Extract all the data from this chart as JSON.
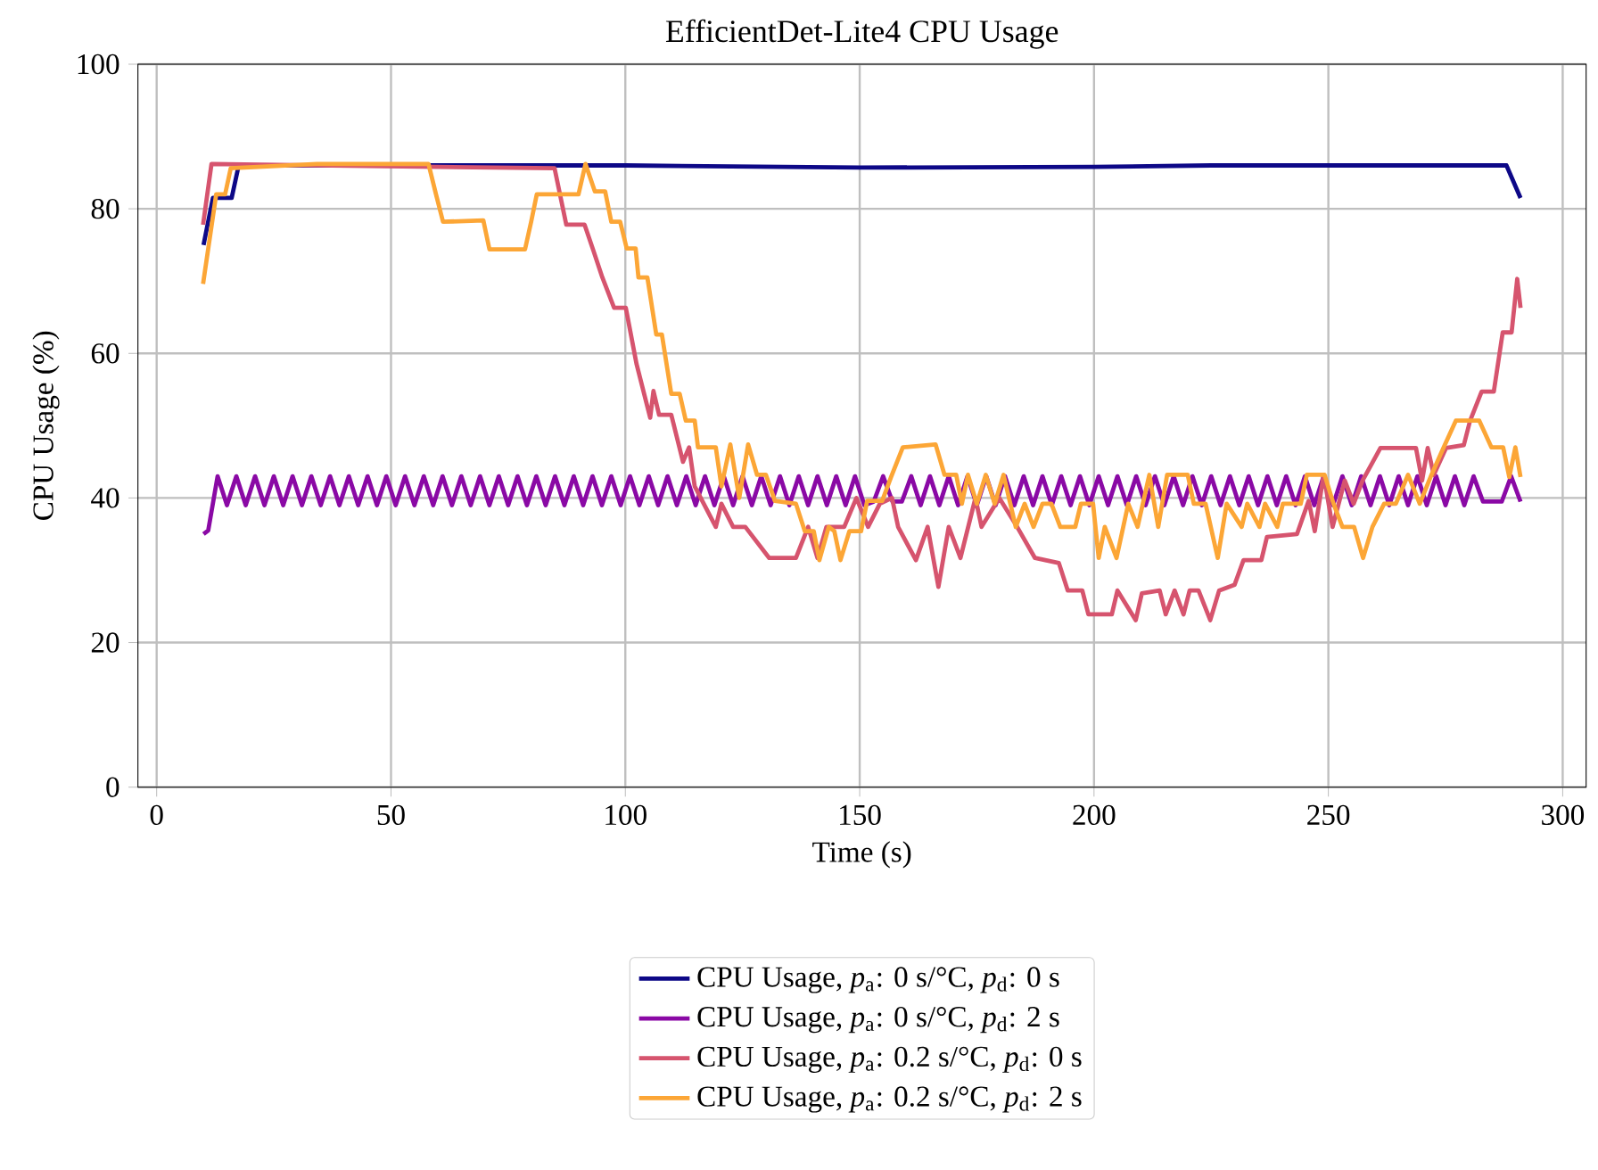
{
  "chart_data": {
    "type": "line",
    "title": "EfficientDet-Lite4 CPU Usage",
    "xlabel": "Time (s)",
    "ylabel": "CPU Usage (%)",
    "xlim": [
      -4,
      305
    ],
    "ylim": [
      0,
      100
    ],
    "xticks": [
      0,
      50,
      100,
      150,
      200,
      250,
      300
    ],
    "yticks": [
      0,
      20,
      40,
      60,
      80,
      100
    ],
    "grid": true,
    "legend": "bottom",
    "series": [
      {
        "name": "CPU Usage, *p*$_{a}$: 0 s/°C, *p*$_{d}$: 0 s",
        "color": "#0d0887",
        "x": [
          10,
          12,
          16,
          17.5,
          100,
          150,
          200,
          225,
          250,
          288,
          291
        ],
        "values": [
          75,
          81.5,
          81.5,
          86,
          86,
          85.7,
          85.8,
          86,
          86,
          86,
          81.5
        ]
      },
      {
        "name": "CPU Usage, *p*$_{a}$: 0 s/°C, *p*$_{d}$: 2 s",
        "color": "#8a09a5",
        "x": [
          10,
          11,
          13,
          15,
          17,
          19,
          21,
          23,
          25,
          27,
          29,
          31,
          33,
          35,
          37,
          39,
          41,
          43,
          45,
          47,
          49,
          51,
          53,
          55,
          57,
          59,
          61,
          63,
          65,
          67,
          69,
          71,
          73,
          75,
          77,
          79,
          81,
          83,
          85,
          87,
          89,
          91,
          93,
          95,
          97,
          99,
          101,
          103,
          105,
          107,
          109,
          111,
          113,
          115,
          117,
          119,
          121,
          123,
          125,
          127,
          129,
          131,
          133,
          135,
          137,
          139,
          141,
          143,
          145,
          147,
          149,
          151,
          153,
          155,
          157,
          159,
          161,
          163,
          165,
          167,
          169,
          171,
          173,
          175,
          177,
          179,
          181,
          183,
          185,
          187,
          189,
          191,
          193,
          195,
          197,
          199,
          201,
          203,
          205,
          207,
          209,
          211,
          213,
          215,
          217,
          219,
          221,
          223,
          225,
          227,
          229,
          231,
          233,
          235,
          237,
          239,
          241,
          243,
          245,
          247,
          249,
          251,
          253,
          255,
          257,
          259,
          261,
          263,
          265,
          267,
          269,
          271,
          273,
          275,
          277,
          279,
          281,
          283,
          285,
          287,
          289,
          291
        ],
        "values": [
          35,
          35.5,
          43,
          39,
          43,
          39,
          43,
          39,
          43,
          39,
          43,
          39,
          43,
          39,
          43,
          39,
          43,
          39,
          43,
          39,
          43,
          39,
          43,
          39,
          43,
          39,
          43,
          39,
          43,
          39,
          43,
          39,
          43,
          39,
          43,
          39,
          43,
          39,
          43,
          39,
          43,
          39,
          43,
          39,
          43,
          39,
          43,
          39,
          43,
          39,
          43,
          39,
          43,
          39,
          43,
          39,
          43,
          39,
          43,
          39,
          43,
          39,
          43,
          39,
          43,
          39,
          43,
          39,
          43,
          39,
          43,
          39,
          39.5,
          43,
          39.5,
          39.5,
          43,
          39,
          43,
          39,
          43,
          39,
          43,
          39,
          43,
          39,
          43,
          39,
          43,
          39,
          43,
          39,
          43,
          39,
          43,
          39,
          43,
          39,
          43,
          39,
          43,
          39,
          43,
          39,
          43,
          39,
          43,
          39,
          43,
          39,
          43,
          39,
          43,
          39,
          43,
          39,
          43,
          39,
          43,
          39,
          43,
          39,
          43,
          39,
          43,
          39,
          43,
          39,
          43,
          39,
          43,
          39,
          43,
          39,
          43,
          39,
          43,
          39.5,
          39.5,
          39.5,
          43,
          39.5
        ]
      },
      {
        "name": "CPU Usage, *p*$_{a}$: 0.2 s/°C, *p*$_{d}$: 0 s",
        "color": "#d6546e",
        "x": [
          9.9,
          11.7,
          84.9,
          87.4,
          91.3,
          93.2,
          95.1,
          97.6,
          100.1,
          102.4,
          105.3,
          106,
          107.2,
          109.8,
          112.3,
          113.6,
          114.8,
          119.3,
          120.5,
          123,
          125.6,
          130.7,
          136.4,
          139,
          141,
          142.9,
          146.7,
          149.3,
          151.8,
          154.3,
          156.9,
          158.2,
          162,
          164.5,
          166.8,
          169,
          171.5,
          174.7,
          176,
          179.8,
          183.6,
          187.4,
          192.5,
          194.4,
          197.5,
          198.8,
          203.8,
          205,
          208.9,
          210.2,
          214,
          215.3,
          217.2,
          219.1,
          220.4,
          222.3,
          224.8,
          226.7,
          230,
          231.9,
          235.7,
          236.9,
          243.3,
          245.8,
          247.1,
          249,
          250.9,
          253.5,
          255.4,
          257.3,
          261.1,
          268.7,
          270,
          271.2,
          272.5,
          275.1,
          278.9,
          280.2,
          282.7,
          285.3,
          287.2,
          289.1,
          290.3,
          291
        ],
        "values": [
          77.8,
          86.2,
          85.6,
          77.8,
          77.8,
          74.2,
          70.5,
          66.3,
          66.3,
          58.5,
          51.1,
          54.8,
          51.5,
          51.5,
          45,
          47,
          41.6,
          36,
          39.2,
          36,
          36,
          31.7,
          31.7,
          36,
          31.7,
          36,
          36,
          40,
          36,
          39.2,
          40,
          36,
          31.4,
          36,
          27.7,
          36,
          31.7,
          40,
          36,
          40,
          36,
          31.7,
          31,
          27.2,
          27.2,
          23.9,
          23.9,
          27.2,
          23.1,
          26.8,
          27.2,
          23.9,
          27.2,
          23.9,
          27.2,
          27.2,
          23.1,
          27.2,
          28,
          31.4,
          31.4,
          34.6,
          35,
          39.6,
          35.4,
          43.2,
          36,
          42.4,
          39.2,
          42.4,
          46.9,
          46.9,
          42.4,
          46.9,
          43.2,
          46.9,
          47.3,
          50.6,
          54.7,
          54.7,
          62.9,
          62.9,
          70.3,
          66.3
        ]
      },
      {
        "name": "CPU Usage, *p*$_{a}$: 0.2 s/°C, *p*$_{d}$: 2 s",
        "color": "#fca636",
        "x": [
          9.9,
          12.7,
          14.6,
          15.8,
          34.2,
          49.4,
          58,
          59.6,
          61.1,
          69.7,
          71,
          78.6,
          79.9,
          81.1,
          90,
          91.5,
          93.5,
          95.7,
          97,
          98.9,
          100.3,
          102.2,
          102.8,
          104.7,
          106.6,
          107.8,
          109.8,
          111.6,
          112.9,
          114.8,
          115.5,
          119.3,
          120.5,
          122.4,
          124.3,
          126.2,
          128.1,
          130,
          131.9,
          136.4,
          138.3,
          140.2,
          141.4,
          143.4,
          144.6,
          145.9,
          147.8,
          150.3,
          151.6,
          154.8,
          156.7,
          159.2,
          166.2,
          168.1,
          170.6,
          171.8,
          173.1,
          175,
          176.9,
          178.8,
          180.7,
          183.3,
          185.2,
          187.1,
          189,
          190.9,
          192.8,
          196,
          197.2,
          199.8,
          201,
          202.3,
          204.8,
          207.3,
          209.3,
          211.8,
          213.7,
          215.6,
          220,
          221.3,
          223.8,
          226.4,
          228.3,
          231.5,
          232.7,
          235.3,
          236.5,
          239.1,
          240.3,
          244.1,
          245.4,
          249.2,
          251.1,
          253,
          255.5,
          257.4,
          259.4,
          261.9,
          264.4,
          267,
          269.5,
          272,
          274.6,
          277.2,
          282.2,
          284.8,
          287.3,
          288.6,
          289.9,
          291
        ],
        "values": [
          69.6,
          82,
          82,
          85.6,
          86.2,
          86.2,
          86.2,
          82,
          78.2,
          78.4,
          74.4,
          74.4,
          78.2,
          82,
          82,
          86.2,
          82.4,
          82.4,
          78.2,
          78.2,
          74.5,
          74.5,
          70.5,
          70.5,
          62.6,
          62.6,
          54.4,
          54.4,
          50.7,
          50.7,
          47,
          47,
          41.6,
          47.4,
          40,
          47.4,
          43.2,
          43.2,
          39.6,
          39.2,
          35.4,
          35.4,
          31.4,
          36,
          35.4,
          31.4,
          35.4,
          35.4,
          39.6,
          39.6,
          42.9,
          47,
          47.4,
          43.2,
          43.2,
          39.2,
          43.2,
          39.2,
          43.2,
          39.2,
          43.2,
          36,
          39.2,
          36,
          39.2,
          39.2,
          36,
          36,
          39.2,
          39.2,
          31.7,
          36,
          31.7,
          39.2,
          36,
          43.2,
          36,
          43.2,
          43.2,
          39.2,
          39.2,
          31.7,
          39.2,
          36,
          39.2,
          36,
          39.2,
          36,
          39.2,
          39.2,
          43.2,
          43.2,
          39.2,
          36,
          36,
          31.7,
          36,
          39.2,
          39.2,
          43.2,
          39.2,
          43.2,
          47,
          50.7,
          50.7,
          47,
          47,
          42.9,
          47,
          42.9
        ]
      }
    ]
  }
}
